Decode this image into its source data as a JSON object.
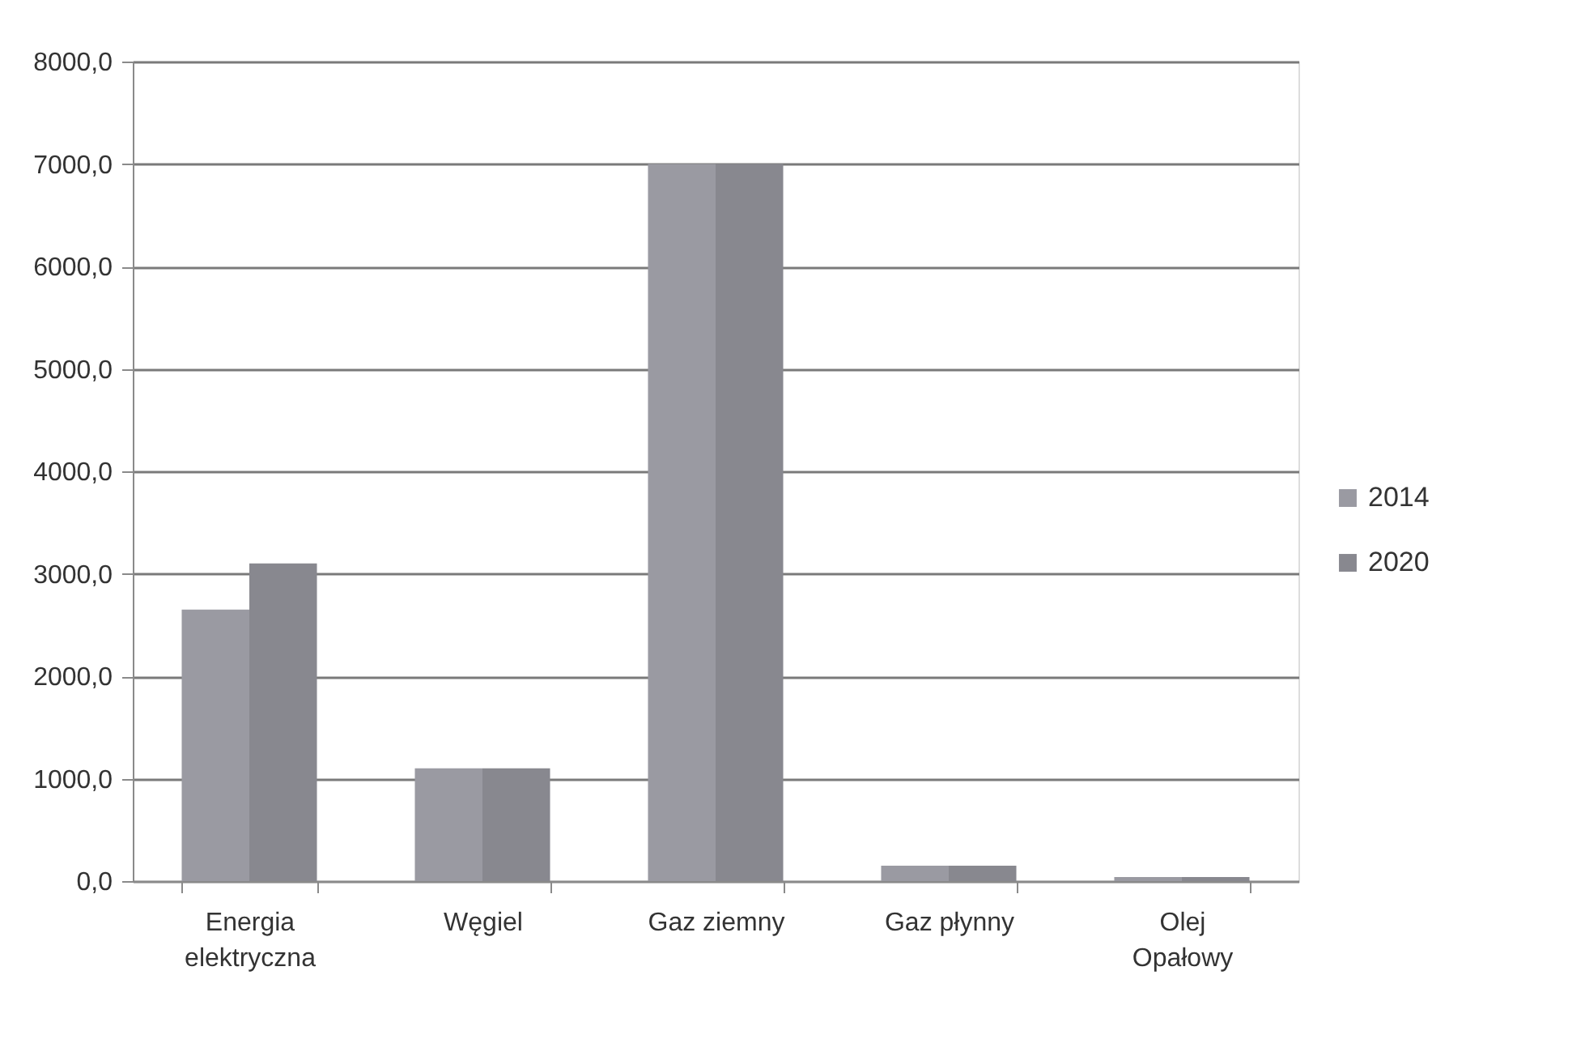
{
  "chart_data": {
    "type": "bar",
    "categories": [
      "Energia elektryczna",
      "Węgiel",
      "Gaz ziemny",
      "Gaz płynny",
      "Olej Opałowy"
    ],
    "series": [
      {
        "name": "2014",
        "color": "#9a9aa2",
        "values": [
          2650,
          1100,
          7000,
          150,
          40
        ]
      },
      {
        "name": "2020",
        "color": "#88888f",
        "values": [
          3100,
          1100,
          7000,
          150,
          40
        ]
      }
    ],
    "ylim": [
      0,
      8000
    ],
    "yticks": [
      {
        "value": 0,
        "label": "0,0"
      },
      {
        "value": 1000,
        "label": "1000,0"
      },
      {
        "value": 2000,
        "label": "2000,0"
      },
      {
        "value": 3000,
        "label": "3000,0"
      },
      {
        "value": 4000,
        "label": "4000,0"
      },
      {
        "value": 5000,
        "label": "5000,0"
      },
      {
        "value": 6000,
        "label": "6000,0"
      },
      {
        "value": 7000,
        "label": "7000,0"
      },
      {
        "value": 8000,
        "label": "8000,0"
      }
    ],
    "grid": "y",
    "legend": "right"
  }
}
